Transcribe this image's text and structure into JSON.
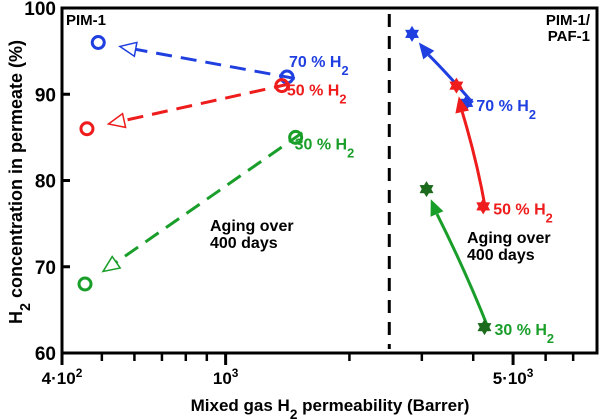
{
  "chart_data": {
    "type": "scatter",
    "title": "",
    "xlabel": "Mixed gas H2 permeability (Barrer)",
    "ylabel": "H2 concentration in permeate (%)",
    "xscale": "log",
    "xlim": [
      400,
      8000
    ],
    "ylim": [
      60,
      100
    ],
    "x_ticks": [
      {
        "value": 400,
        "label": "4·10²"
      },
      {
        "value": 1000,
        "label": "10³"
      },
      {
        "value": 5000,
        "label": "5·10³"
      }
    ],
    "x_minor_ticks": [
      500,
      600,
      700,
      800,
      900,
      2000,
      3000,
      4000,
      6000,
      7000,
      8000
    ],
    "y_ticks": [
      60,
      70,
      80,
      90,
      100
    ],
    "grid": false,
    "divider_x": 2500,
    "panels": [
      {
        "name": "PIM-1",
        "marker": "open-circle",
        "line": "dashed"
      },
      {
        "name": "PIM-1/\nPAF-1",
        "marker": "star",
        "line": "solid"
      }
    ],
    "series": [
      {
        "panel": "PIM-1",
        "name": "70 % H2",
        "color": "#1f3fe0",
        "initial": [
          1410,
          92
        ],
        "aged": [
          490,
          96
        ]
      },
      {
        "panel": "PIM-1",
        "name": "50 % H2",
        "color": "#ee1c1c",
        "initial": [
          1370,
          91
        ],
        "aged": [
          460,
          86
        ]
      },
      {
        "panel": "PIM-1",
        "name": "30 % H2",
        "color": "#1a9e2a",
        "initial": [
          1480,
          85
        ],
        "aged": [
          455,
          68
        ]
      },
      {
        "panel": "PIM-1/PAF-1",
        "name": "70 % H2",
        "color": "#1f3fe0",
        "initial": [
          3850,
          89
        ],
        "aged": [
          2840,
          97
        ]
      },
      {
        "panel": "PIM-1/PAF-1",
        "name": "50 % H2",
        "color": "#ee1c1c",
        "initial": [
          4230,
          77
        ],
        "aged": [
          3640,
          91
        ]
      },
      {
        "panel": "PIM-1/PAF-1",
        "name": "30 % H2",
        "color": "#1a9e2a",
        "marker_color": "#1c6a1c",
        "initial": [
          4260,
          63
        ],
        "aged": [
          3080,
          79
        ]
      }
    ],
    "annotations": [
      "Aging over\n400 days",
      "Aging over\n400 days"
    ]
  }
}
